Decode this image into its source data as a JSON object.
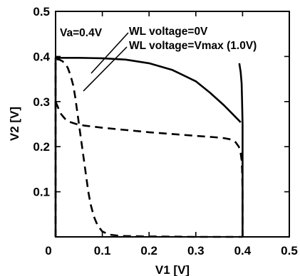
{
  "chart_data": {
    "type": "line",
    "title": "",
    "xlabel": "V1 [V]",
    "ylabel": "V2 [V]",
    "xlim": [
      0,
      0.5
    ],
    "ylim": [
      0,
      0.5
    ],
    "xticks": [
      "0",
      "0.1",
      "0.2",
      "0.3",
      "0.4",
      "0.5"
    ],
    "yticks": [
      "0.1",
      "0.2",
      "0.3",
      "0.4",
      "0.5"
    ],
    "grid": false,
    "annotations": [
      {
        "text": "Va=0.4V"
      },
      {
        "text": "WL voltage=0V"
      },
      {
        "text": "WL voltage=Vmax (1.0V)"
      }
    ],
    "series": [
      {
        "style": "dashed",
        "points": [
          [
            0.0,
            0.0
          ],
          [
            0.0,
            0.395
          ],
          [
            0.002,
            0.394
          ],
          [
            0.008,
            0.393
          ],
          [
            0.014,
            0.39
          ],
          [
            0.02,
            0.385
          ],
          [
            0.026,
            0.375
          ],
          [
            0.032,
            0.358
          ],
          [
            0.038,
            0.335
          ],
          [
            0.042,
            0.31
          ],
          [
            0.046,
            0.28
          ],
          [
            0.05,
            0.25
          ],
          [
            0.054,
            0.22
          ],
          [
            0.058,
            0.19
          ],
          [
            0.062,
            0.16
          ],
          [
            0.066,
            0.13
          ],
          [
            0.07,
            0.1
          ],
          [
            0.075,
            0.072
          ],
          [
            0.082,
            0.045
          ],
          [
            0.09,
            0.025
          ],
          [
            0.1,
            0.012
          ],
          [
            0.115,
            0.005
          ],
          [
            0.14,
            0.002
          ],
          [
            0.2,
            0.001
          ],
          [
            0.3,
            0.0
          ],
          [
            0.4,
            0.0
          ]
        ]
      },
      {
        "style": "dashed",
        "points": [
          [
            0.0,
            0.3
          ],
          [
            0.006,
            0.285
          ],
          [
            0.012,
            0.272
          ],
          [
            0.02,
            0.262
          ],
          [
            0.03,
            0.255
          ],
          [
            0.045,
            0.25
          ],
          [
            0.06,
            0.247
          ],
          [
            0.1,
            0.242
          ],
          [
            0.15,
            0.237
          ],
          [
            0.2,
            0.232
          ],
          [
            0.25,
            0.228
          ],
          [
            0.3,
            0.224
          ],
          [
            0.34,
            0.221
          ],
          [
            0.36,
            0.219
          ],
          [
            0.375,
            0.216
          ],
          [
            0.385,
            0.21
          ],
          [
            0.392,
            0.2
          ],
          [
            0.396,
            0.185
          ],
          [
            0.398,
            0.17
          ],
          [
            0.399,
            0.15
          ],
          [
            0.4,
            0.1
          ],
          [
            0.4,
            0.0
          ]
        ]
      },
      {
        "style": "solid",
        "points": [
          [
            0.0,
            0.0
          ],
          [
            0.0,
            0.397
          ],
          [
            0.05,
            0.397
          ],
          [
            0.1,
            0.396
          ],
          [
            0.15,
            0.393
          ],
          [
            0.2,
            0.385
          ],
          [
            0.25,
            0.37
          ],
          [
            0.3,
            0.345
          ],
          [
            0.33,
            0.32
          ],
          [
            0.36,
            0.292
          ],
          [
            0.38,
            0.271
          ],
          [
            0.396,
            0.254
          ]
        ]
      },
      {
        "style": "solid",
        "points": [
          [
            0.4,
            0.0
          ],
          [
            0.4,
            0.25
          ],
          [
            0.399,
            0.3
          ],
          [
            0.398,
            0.34
          ],
          [
            0.396,
            0.365
          ],
          [
            0.393,
            0.385
          ]
        ]
      }
    ]
  }
}
